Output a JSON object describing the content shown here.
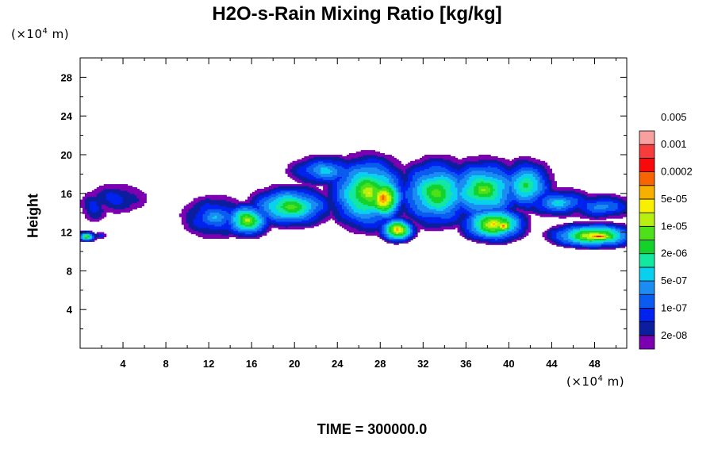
{
  "chart_data": {
    "type": "heatmap",
    "title": "H2O-s-Rain Mixing Ratio [kg/kg]",
    "xlabel": "",
    "ylabel": "Height",
    "x_unit": {
      "prefix": "(×10",
      "exp": "4",
      "suffix": " m)"
    },
    "y_unit": {
      "prefix": "(×10",
      "exp": "4",
      "suffix": " m)"
    },
    "footer": "TIME = 300000.0",
    "xlim": [
      0,
      51
    ],
    "ylim": [
      0,
      30
    ],
    "x_ticks": [
      4,
      8,
      12,
      16,
      20,
      24,
      28,
      32,
      36,
      40,
      44,
      48
    ],
    "y_ticks": [
      4,
      8,
      12,
      16,
      20,
      24,
      28
    ],
    "colorbar": {
      "colors": [
        "#7a00b0",
        "#0b1e9e",
        "#0022ee",
        "#0a5cf0",
        "#1a8cf2",
        "#0ad0f0",
        "#14e8a0",
        "#14d22a",
        "#4ee01a",
        "#b8ee10",
        "#f8f000",
        "#f8b000",
        "#f86400",
        "#f80a0a",
        "#f83c3c",
        "#f8a0a0"
      ],
      "labels": [
        "2e-08",
        "1e-07",
        "5e-07",
        "2e-06",
        "1e-05",
        "5e-05",
        "0.0002",
        "0.001",
        "0.005"
      ]
    },
    "clouds": [
      {
        "cx": 3.2,
        "cy": 15.4,
        "rx": 2.9,
        "ry": 1.5,
        "peak": 3
      },
      {
        "cx": 1.2,
        "cy": 14.6,
        "rx": 1.3,
        "ry": 1.6,
        "peak": 3
      },
      {
        "cx": 0.5,
        "cy": 11.5,
        "rx": 1.0,
        "ry": 0.6,
        "peak": 9
      },
      {
        "cx": 1.8,
        "cy": 11.6,
        "rx": 0.5,
        "ry": 0.3,
        "peak": 4
      },
      {
        "cx": 12.5,
        "cy": 13.5,
        "rx": 3.3,
        "ry": 2.3,
        "peak": 5
      },
      {
        "cx": 15.5,
        "cy": 13.2,
        "rx": 2.6,
        "ry": 2.0,
        "peak": 10
      },
      {
        "cx": 19.5,
        "cy": 14.6,
        "rx": 4.4,
        "ry": 2.4,
        "peak": 9
      },
      {
        "cx": 22.8,
        "cy": 18.3,
        "rx": 3.7,
        "ry": 1.7,
        "peak": 6
      },
      {
        "cx": 26.8,
        "cy": 16.0,
        "rx": 4.3,
        "ry": 4.4,
        "peak": 10
      },
      {
        "cx": 28.2,
        "cy": 15.5,
        "rx": 2.2,
        "ry": 2.8,
        "peak": 13
      },
      {
        "cx": 29.5,
        "cy": 12.2,
        "rx": 2.0,
        "ry": 1.5,
        "peak": 12
      },
      {
        "cx": 33.2,
        "cy": 16.0,
        "rx": 4.2,
        "ry": 4.0,
        "peak": 9
      },
      {
        "cx": 37.5,
        "cy": 16.3,
        "rx": 4.5,
        "ry": 3.6,
        "peak": 9
      },
      {
        "cx": 38.5,
        "cy": 12.8,
        "rx": 3.6,
        "ry": 2.2,
        "peak": 11
      },
      {
        "cx": 39.4,
        "cy": 12.6,
        "rx": 1.3,
        "ry": 1.0,
        "peak": 13
      },
      {
        "cx": 41.5,
        "cy": 16.8,
        "rx": 2.8,
        "ry": 3.0,
        "peak": 8
      },
      {
        "cx": 44.5,
        "cy": 15.0,
        "rx": 3.5,
        "ry": 1.6,
        "peak": 6
      },
      {
        "cx": 48.5,
        "cy": 14.6,
        "rx": 3.5,
        "ry": 1.4,
        "peak": 5
      },
      {
        "cx": 47.8,
        "cy": 11.6,
        "rx": 4.8,
        "ry": 1.5,
        "peak": 11
      },
      {
        "cx": 48.3,
        "cy": 11.5,
        "rx": 2.6,
        "ry": 0.7,
        "peak": 14
      }
    ]
  }
}
